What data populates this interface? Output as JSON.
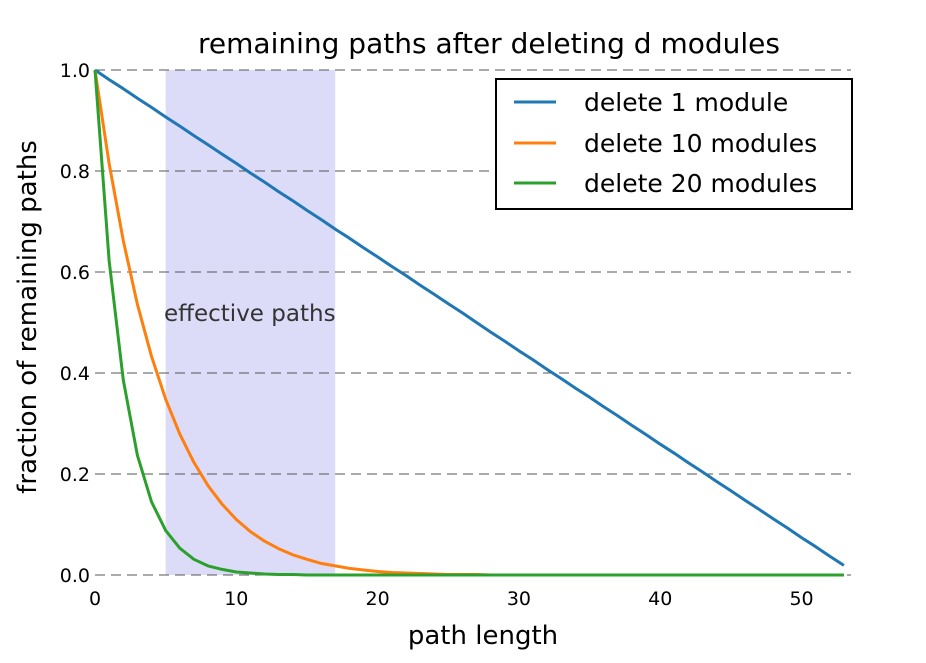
{
  "chart_data": {
    "type": "line",
    "title": "remaining paths after deleting d modules",
    "xlabel": "path length",
    "ylabel": "fraction of remaining paths",
    "xlim": [
      0,
      53.5
    ],
    "ylim": [
      0,
      1.0
    ],
    "xticks": [
      0,
      10,
      20,
      30,
      40,
      50
    ],
    "yticks": [
      0.0,
      0.2,
      0.4,
      0.6,
      0.8,
      1.0
    ],
    "xtick_labels": [
      "0",
      "10",
      "20",
      "30",
      "40",
      "50"
    ],
    "ytick_labels": [
      "0.0",
      "0.2",
      "0.4",
      "0.6",
      "0.8",
      "1.0"
    ],
    "grid": "horizontal dashed",
    "legend_position": "top-right",
    "shaded_region": {
      "x_start": 5,
      "x_end": 17,
      "color": "#dcdcf8",
      "label": "effective paths"
    },
    "x": [
      0,
      1,
      2,
      3,
      4,
      5,
      6,
      7,
      8,
      9,
      10,
      11,
      12,
      13,
      14,
      15,
      16,
      17,
      18,
      19,
      20,
      21,
      22,
      23,
      24,
      25,
      26,
      27,
      28,
      29,
      30,
      31,
      32,
      33,
      34,
      35,
      36,
      37,
      38,
      39,
      40,
      41,
      42,
      43,
      44,
      45,
      46,
      47,
      48,
      49,
      50,
      51,
      52,
      53
    ],
    "series": [
      {
        "name": "delete 1 module",
        "color": "#1f77b4",
        "values": [
          1.0,
          0.981,
          0.963,
          0.944,
          0.926,
          0.907,
          0.889,
          0.87,
          0.852,
          0.833,
          0.815,
          0.796,
          0.778,
          0.759,
          0.741,
          0.722,
          0.704,
          0.685,
          0.667,
          0.648,
          0.63,
          0.611,
          0.593,
          0.574,
          0.556,
          0.537,
          0.519,
          0.5,
          0.481,
          0.463,
          0.444,
          0.426,
          0.407,
          0.389,
          0.37,
          0.352,
          0.333,
          0.315,
          0.296,
          0.278,
          0.259,
          0.241,
          0.222,
          0.204,
          0.185,
          0.167,
          0.148,
          0.13,
          0.111,
          0.093,
          0.074,
          0.056,
          0.037,
          0.019
        ]
      },
      {
        "name": "delete 10 modules",
        "color": "#ff7f0e",
        "values": [
          1.0,
          0.815,
          0.662,
          0.536,
          0.433,
          0.348,
          0.279,
          0.223,
          0.177,
          0.14,
          0.11,
          0.086,
          0.067,
          0.052,
          0.04,
          0.031,
          0.023,
          0.018,
          0.013,
          0.01,
          0.007,
          0.005,
          0.004,
          0.003,
          0.002,
          0.001,
          0.001,
          0.001,
          0.0,
          0.0,
          0.0,
          0.0,
          0.0,
          0.0,
          0.0,
          0.0,
          0.0,
          0.0,
          0.0,
          0.0,
          0.0,
          0.0,
          0.0,
          0.0,
          0.0,
          0.0,
          0.0,
          0.0,
          0.0,
          0.0,
          0.0,
          0.0,
          0.0,
          0.0
        ]
      },
      {
        "name": "delete 20 modules",
        "color": "#2ca02c",
        "values": [
          1.0,
          0.623,
          0.386,
          0.237,
          0.145,
          0.088,
          0.053,
          0.031,
          0.018,
          0.011,
          0.006,
          0.004,
          0.002,
          0.001,
          0.001,
          0.0,
          0.0,
          0.0,
          0.0,
          0.0,
          0.0,
          0.0,
          0.0,
          0.0,
          0.0,
          0.0,
          0.0,
          0.0,
          0.0,
          0.0,
          0.0,
          0.0,
          0.0,
          0.0,
          0.0,
          0.0,
          0.0,
          0.0,
          0.0,
          0.0,
          0.0,
          0.0,
          0.0,
          0.0,
          0.0,
          0.0,
          0.0,
          0.0,
          0.0,
          0.0,
          0.0,
          0.0,
          0.0,
          0.0
        ]
      }
    ]
  }
}
